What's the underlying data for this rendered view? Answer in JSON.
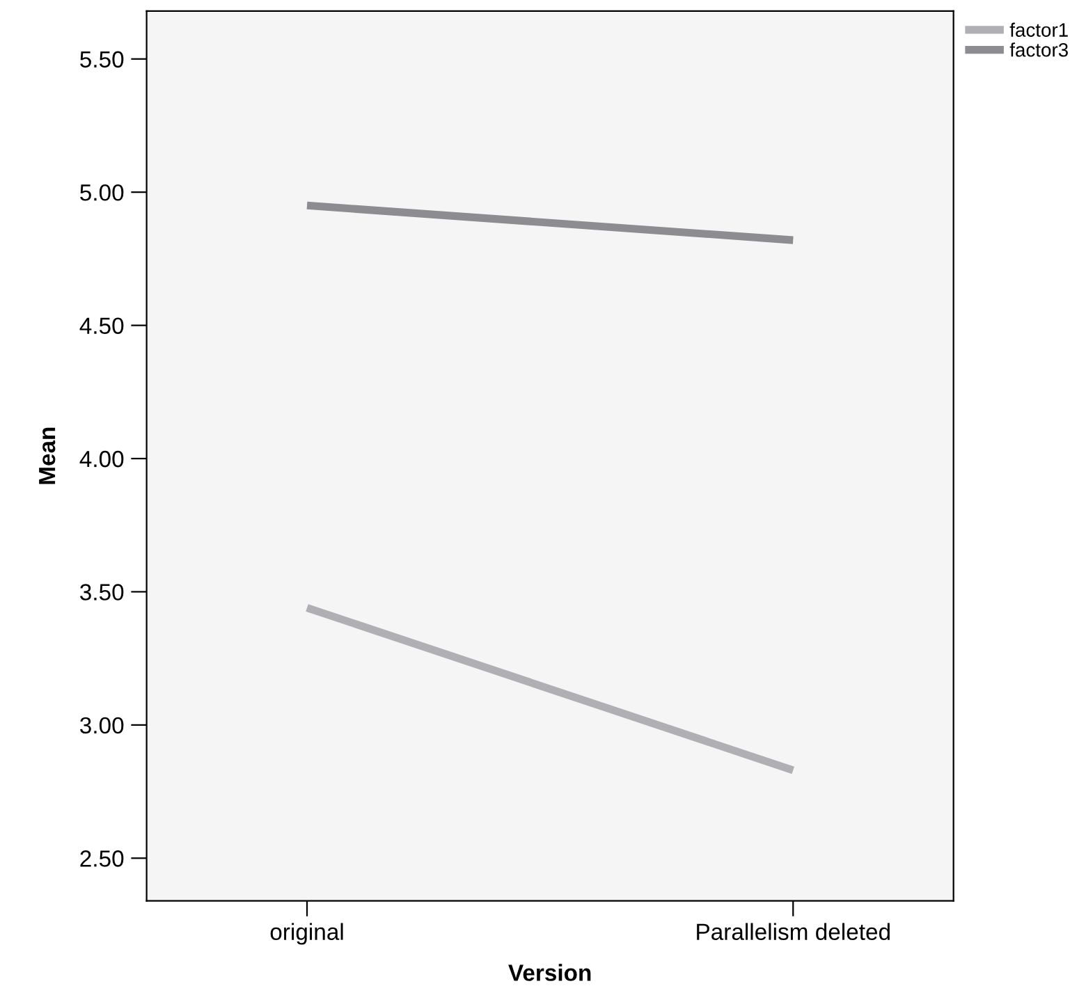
{
  "chart_data": {
    "type": "line",
    "xlabel": "Version",
    "ylabel": "Mean",
    "categories": [
      "original",
      "Parallelism deleted"
    ],
    "series": [
      {
        "name": "factor1",
        "color": "#b0b0b4",
        "values": [
          3.44,
          2.83
        ]
      },
      {
        "name": "factor3",
        "color": "#8c8c91",
        "values": [
          4.95,
          4.82
        ]
      }
    ],
    "ylim": [
      2.34,
      5.68
    ],
    "yticks": [
      {
        "value": 2.5,
        "label": "2.50"
      },
      {
        "value": 3.0,
        "label": "3.00"
      },
      {
        "value": 3.5,
        "label": "3.50"
      },
      {
        "value": 4.0,
        "label": "4.00"
      },
      {
        "value": 4.5,
        "label": "4.50"
      },
      {
        "value": 5.0,
        "label": "5.00"
      },
      {
        "value": 5.5,
        "label": "5.50"
      }
    ],
    "grid": false,
    "legend": "top right",
    "marker": "none",
    "line_style": "solid"
  }
}
